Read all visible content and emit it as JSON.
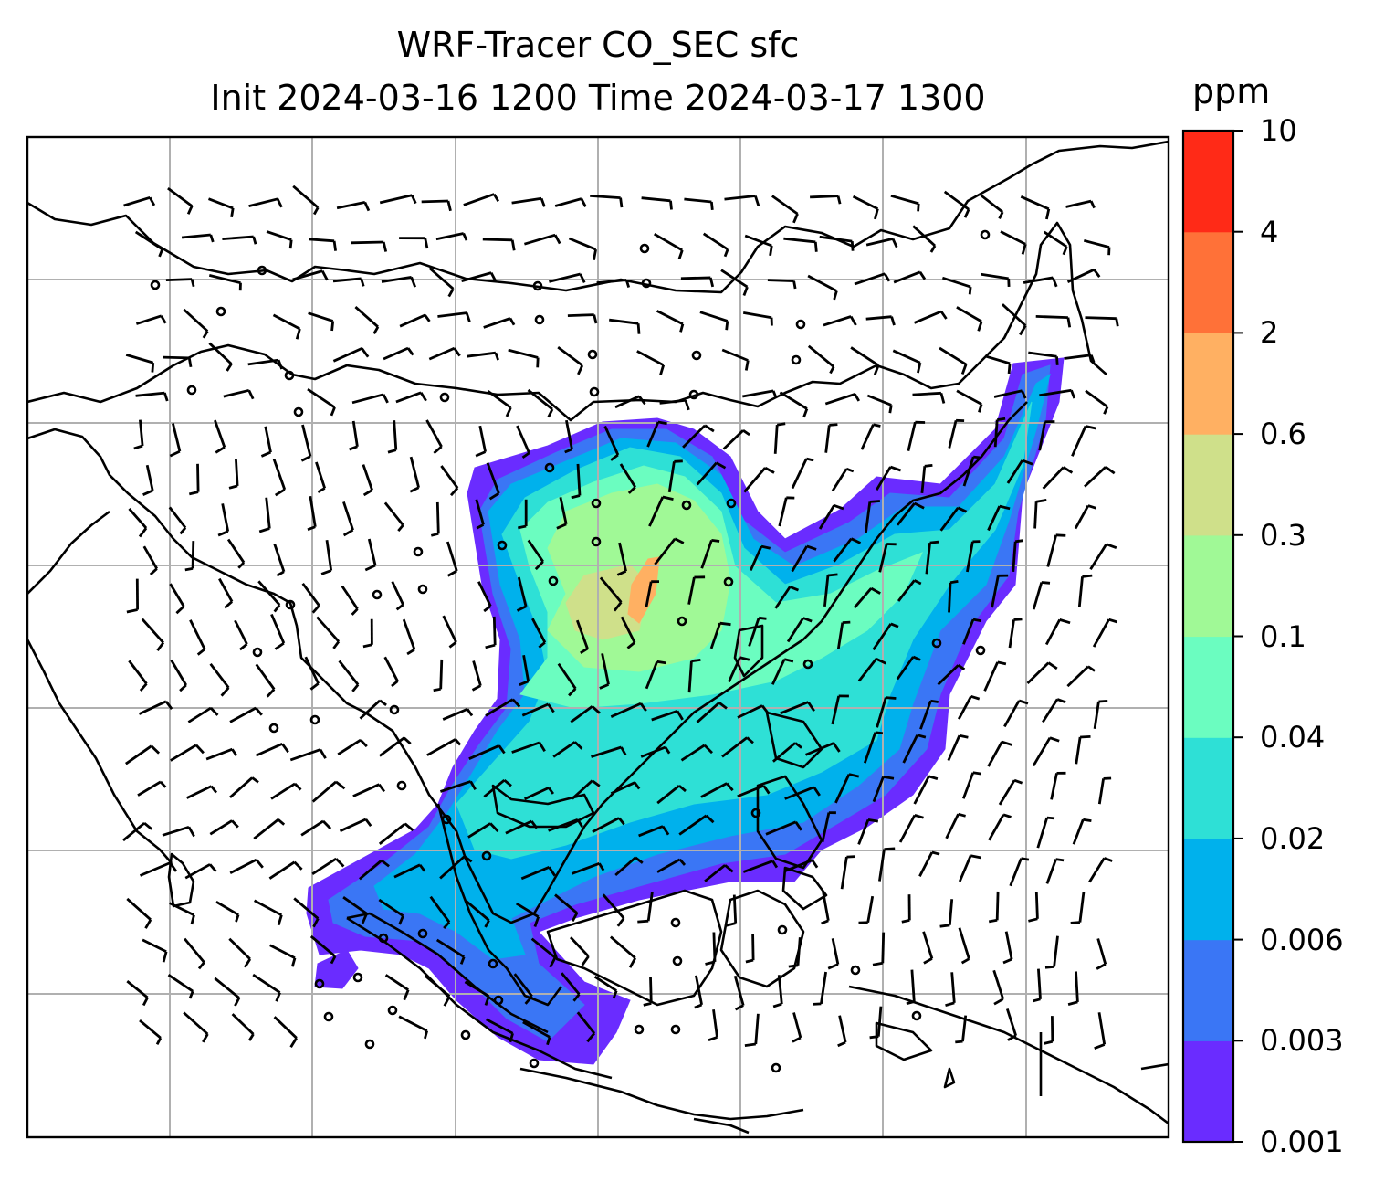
{
  "title": {
    "line1": "WRF-Tracer CO_SEC sfc",
    "line2": "Init 2024-03-16 1200 Time 2024-03-17 1300"
  },
  "colorbar": {
    "unit": "ppm",
    "levels": [
      "0.001",
      "0.003",
      "0.006",
      "0.02",
      "0.04",
      "0.1",
      "0.3",
      "0.6",
      "2",
      "4",
      "10"
    ],
    "colors": [
      "#6a2cff",
      "#3a76f5",
      "#00b1ec",
      "#2ee0d6",
      "#6bfdc0",
      "#a0f996",
      "#cfe08a",
      "#ffb062",
      "#ff7138",
      "#ff2a17"
    ]
  },
  "map": {
    "colors": {
      "coastline": "#000000",
      "grid": "#b0b0b0",
      "barb": "#000000"
    }
  }
}
